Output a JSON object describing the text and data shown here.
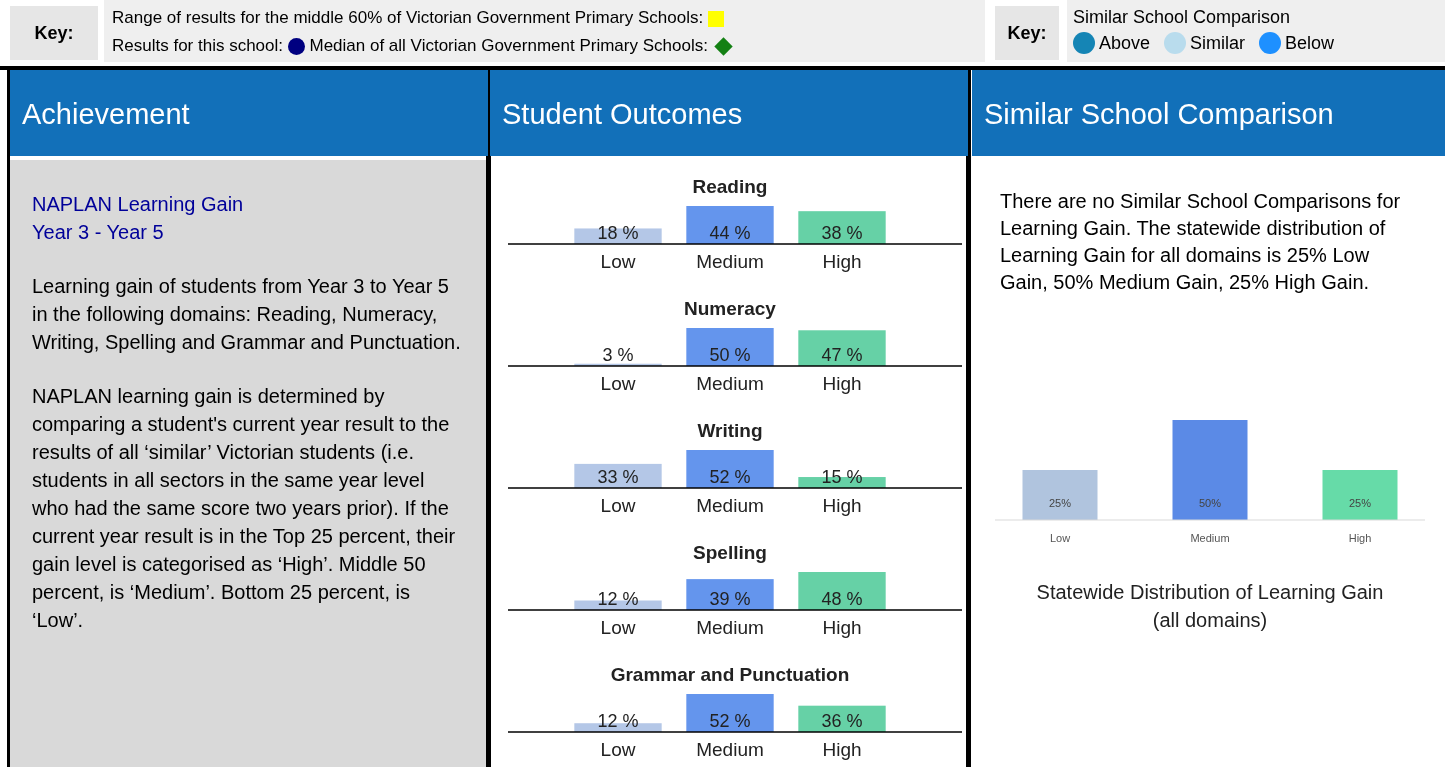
{
  "chart_data": [
    {
      "type": "other",
      "annotations": [
        "Key:",
        "Range of results for the middle 60% of Victorian Government Primary Schools:",
        "Results for this school:",
        "Median of all Victorian Government Primary Schools:"
      ]
    },
    {
      "type": "other",
      "title": "Similar School Comparison",
      "annotations": [
        "Key:",
        "Above",
        "Similar",
        "Below"
      ]
    },
    {
      "type": "other",
      "title": "Achievement",
      "subtitle": "NAPLAN Learning Gain\nYear 3 - Year 5",
      "annotations": [
        "Learning gain of students from Year 3 to Year 5 in the following domains: Reading, Numeracy, Writing, Spelling and Grammar and Punctuation.",
        "NAPLAN learning gain is determined by comparing a student's current year result to the results of all ‘similar’ Victorian students (i.e. students in all sectors in the same year level who had the same score two years prior). If the current year result is in the Top 25 percent, their gain level is categorised as ‘High’. Middle 50 percent, is ‘Medium’. Bottom 25 percent, is ‘Low’."
      ]
    },
    {
      "type": "other",
      "title": "Student Outcomes"
    },
    {
      "type": "bar",
      "title": "Reading",
      "categories": [
        "Low",
        "Medium",
        "High"
      ],
      "values": [
        18,
        44,
        38
      ],
      "value_labels": [
        "18 %",
        "44 %",
        "38 %"
      ],
      "colors": [
        "#b4c7e7",
        "#6495ed",
        "#66d1a6"
      ]
    },
    {
      "type": "bar",
      "title": "Numeracy",
      "categories": [
        "Low",
        "Medium",
        "High"
      ],
      "values": [
        3,
        50,
        47
      ],
      "value_labels": [
        "3 %",
        "50 %",
        "47 %"
      ],
      "colors": [
        "#b4c7e7",
        "#6495ed",
        "#66d1a6"
      ]
    },
    {
      "type": "bar",
      "title": "Writing",
      "categories": [
        "Low",
        "Medium",
        "High"
      ],
      "values": [
        33,
        52,
        15
      ],
      "value_labels": [
        "33 %",
        "52 %",
        "15 %"
      ],
      "colors": [
        "#b4c7e7",
        "#6495ed",
        "#66d1a6"
      ]
    },
    {
      "type": "bar",
      "title": "Spelling",
      "categories": [
        "Low",
        "Medium",
        "High"
      ],
      "values": [
        12,
        39,
        48
      ],
      "value_labels": [
        "12 %",
        "39 %",
        "48 %"
      ],
      "colors": [
        "#b4c7e7",
        "#6495ed",
        "#66d1a6"
      ]
    },
    {
      "type": "bar",
      "title": "Grammar and Punctuation",
      "categories": [
        "Low",
        "Medium",
        "High"
      ],
      "values": [
        12,
        52,
        36
      ],
      "value_labels": [
        "12 %",
        "52 %",
        "36 %"
      ],
      "colors": [
        "#b4c7e7",
        "#6495ed",
        "#66d1a6"
      ]
    },
    {
      "type": "other",
      "title": "Similar School Comparison",
      "annotations": [
        "There are no Similar School Comparisons for Learning Gain. The statewide distribution of Learning Gain for all domains is 25% Low Gain, 50% Medium Gain, 25% High Gain."
      ]
    },
    {
      "type": "bar",
      "title": "Statewide Distribution of Learning Gain\n(all domains)",
      "categories": [
        "Low",
        "Medium",
        "High"
      ],
      "values": [
        25,
        50,
        25
      ],
      "value_labels": [
        "25%",
        "50%",
        "25%"
      ],
      "colors": [
        "#b0c4de",
        "#5b8ae6",
        "#66dba8"
      ]
    }
  ]
}
